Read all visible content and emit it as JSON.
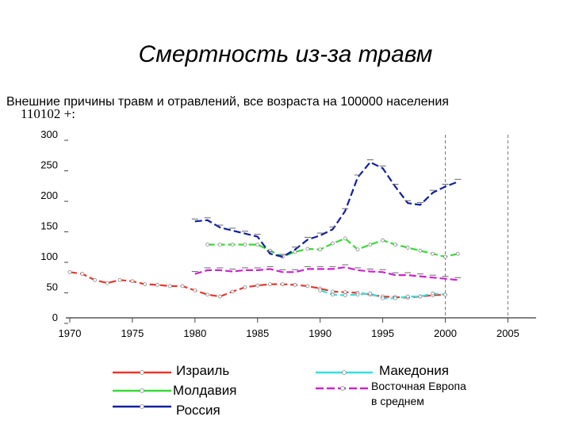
{
  "title": "Смертность из-за травм",
  "subtitle": "Внешние причины травм и отравлений, все возраста на 100000 населения",
  "code": "110102 +:",
  "legend": {
    "israel": "Израиль",
    "moldova": "Молдавия",
    "russia": "Россия",
    "macedonia": "Македония",
    "eastern_europe_line1": "Восточная Европа",
    "eastern_europe_line2": "в среднем"
  },
  "chart_data": {
    "type": "line",
    "title": "Смертность из-за травм",
    "xlabel": "",
    "ylabel": "",
    "xlim": [
      1970,
      2007
    ],
    "ylim": [
      0,
      300
    ],
    "x_ticks": [
      1970,
      1975,
      1980,
      1985,
      1990,
      1995,
      2000,
      2005
    ],
    "y_ticks": [
      0,
      50,
      100,
      150,
      200,
      250,
      300
    ],
    "reference_lines_x": [
      2000,
      2005
    ],
    "series": [
      {
        "name": "Израиль",
        "color": "#e8362a",
        "marker": "circle",
        "x": [
          1970,
          1971,
          1972,
          1973,
          1974,
          1975,
          1976,
          1977,
          1978,
          1979,
          1980,
          1981,
          1982,
          1983,
          1984,
          1985,
          1986,
          1987,
          1988,
          1989,
          1990,
          1991,
          1992,
          1993,
          1994,
          1995,
          1996,
          1997,
          1998,
          1999,
          2000
        ],
        "y": [
          75,
          72,
          62,
          57,
          62,
          60,
          55,
          54,
          52,
          52,
          45,
          38,
          35,
          43,
          50,
          53,
          55,
          55,
          54,
          52,
          48,
          43,
          42,
          41,
          38,
          35,
          34,
          33,
          35,
          37,
          38
        ]
      },
      {
        "name": "Молдавия",
        "color": "#33dd33",
        "marker": "diamond",
        "x": [
          1981,
          1982,
          1983,
          1984,
          1985,
          1986,
          1987,
          1988,
          1989,
          1990,
          1991,
          1992,
          1993,
          1994,
          1995,
          1996,
          1997,
          1998,
          1999,
          2000,
          2001
        ],
        "y": [
          120,
          120,
          120,
          120,
          120,
          110,
          100,
          108,
          113,
          112,
          122,
          130,
          112,
          120,
          127,
          120,
          115,
          110,
          105,
          100,
          105
        ]
      },
      {
        "name": "Россия",
        "color": "#1020a0",
        "marker": "triangle",
        "x": [
          1980,
          1981,
          1982,
          1983,
          1984,
          1985,
          1986,
          1987,
          1988,
          1989,
          1990,
          1991,
          1992,
          1993,
          1994,
          1995,
          1996,
          1997,
          1998,
          1999,
          2000,
          2001
        ],
        "y": [
          158,
          160,
          148,
          143,
          138,
          133,
          105,
          100,
          112,
          128,
          135,
          145,
          175,
          230,
          255,
          245,
          215,
          188,
          185,
          205,
          215,
          223
        ]
      },
      {
        "name": "Македония",
        "color": "#33e0e0",
        "marker": "circle",
        "x": [
          1990,
          1991,
          1992,
          1993,
          1994,
          1995,
          1996,
          1997,
          1998,
          1999,
          2000
        ],
        "y": [
          45,
          38,
          37,
          38,
          40,
          32,
          32,
          35,
          35,
          40,
          38
        ]
      },
      {
        "name": "Восточная Европа в среднем",
        "color": "#cc22cc",
        "marker": "square",
        "x": [
          1980,
          1981,
          1982,
          1983,
          1984,
          1985,
          1986,
          1987,
          1988,
          1989,
          1990,
          1991,
          1992,
          1993,
          1994,
          1995,
          1996,
          1997,
          1998,
          1999,
          2000,
          2001
        ],
        "y": [
          72,
          78,
          78,
          76,
          78,
          78,
          80,
          75,
          75,
          80,
          80,
          80,
          83,
          78,
          76,
          75,
          70,
          70,
          68,
          66,
          64,
          62
        ]
      }
    ]
  }
}
